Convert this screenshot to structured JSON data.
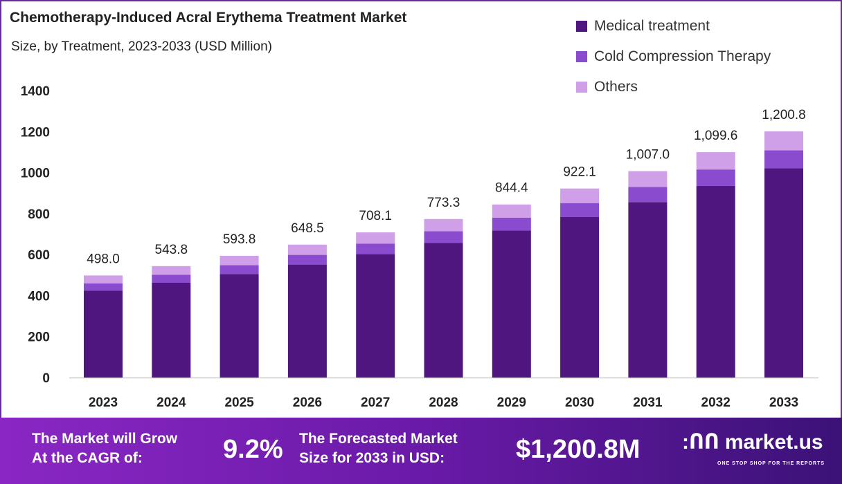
{
  "chart_data": {
    "type": "bar",
    "stacked": true,
    "title": "Chemotherapy-Induced Acral Erythema Treatment Market",
    "subtitle": "Size, by Treatment, 2023-2033 (USD Million)",
    "categories": [
      "2023",
      "2024",
      "2025",
      "2026",
      "2027",
      "2028",
      "2029",
      "2030",
      "2031",
      "2032",
      "2033"
    ],
    "series": [
      {
        "name": "Medical treatment",
        "color": "#4f1680",
        "values": [
          423.3,
          462.2,
          504.7,
          551.2,
          601.9,
          657.3,
          717.7,
          783.8,
          856.0,
          934.7,
          1020.7
        ]
      },
      {
        "name": "Cold Compression Therapy",
        "color": "#8a4bcf",
        "values": [
          36.4,
          39.7,
          43.3,
          47.3,
          51.7,
          56.4,
          61.6,
          67.3,
          73.5,
          80.3,
          87.7
        ]
      },
      {
        "name": "Others",
        "color": "#cfa0e8",
        "values": [
          38.3,
          41.9,
          45.8,
          50.0,
          54.5,
          59.6,
          65.1,
          71.0,
          77.5,
          84.6,
          92.4
        ]
      }
    ],
    "totals": [
      "498.0",
      "543.8",
      "593.8",
      "648.5",
      "708.1",
      "773.3",
      "844.4",
      "922.1",
      "1,007.0",
      "1,099.6",
      "1,200.8"
    ],
    "yticks": [
      "0",
      "200",
      "400",
      "600",
      "800",
      "1000",
      "1200",
      "1400"
    ],
    "ylim": [
      0,
      1400
    ],
    "legend": "top-right",
    "grid": false
  },
  "footer": {
    "cagr_label": [
      "The Market will Grow",
      "At the CAGR of:"
    ],
    "cagr_value": "9.2%",
    "forecast_label": [
      "The Forecasted Market",
      "Size for 2033 in USD:"
    ],
    "forecast_value": "$1,200.8M",
    "brand": "market.us",
    "tagline": "ONE STOP SHOP FOR THE REPORTS"
  }
}
